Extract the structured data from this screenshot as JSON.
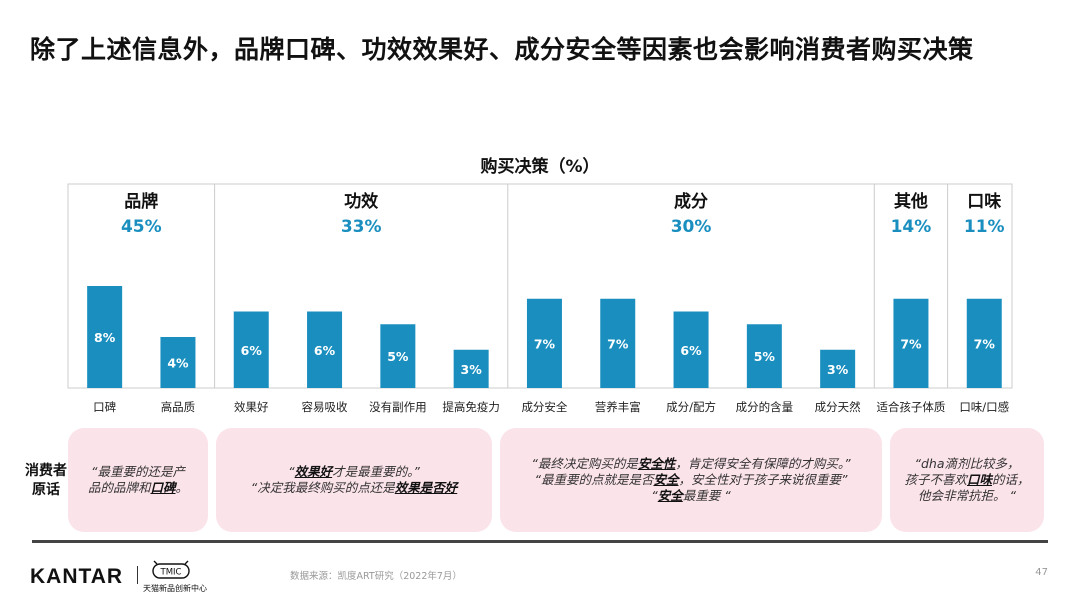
{
  "title": "除了上述信息外，品牌口碑、功效效果好、成分安全等因素也会影响消费者购买决策",
  "chart_data": {
    "type": "bar",
    "title": "购买决策（%）",
    "groups": [
      {
        "name": "品牌",
        "pct": "45%",
        "items": [
          {
            "label": "口碑",
            "value": 8,
            "value_label": "8%"
          },
          {
            "label": "高品质",
            "value": 4,
            "value_label": "4%"
          }
        ]
      },
      {
        "name": "功效",
        "pct": "33%",
        "items": [
          {
            "label": "效果好",
            "value": 6,
            "value_label": "6%"
          },
          {
            "label": "容易吸收",
            "value": 6,
            "value_label": "6%"
          },
          {
            "label": "没有副作用",
            "value": 5,
            "value_label": "5%"
          },
          {
            "label": "提高免疫力",
            "value": 3,
            "value_label": "3%"
          }
        ]
      },
      {
        "name": "成分",
        "pct": "30%",
        "items": [
          {
            "label": "成分安全",
            "value": 7,
            "value_label": "7%"
          },
          {
            "label": "营养丰富",
            "value": 7,
            "value_label": "7%"
          },
          {
            "label": "成分/配方",
            "value": 6,
            "value_label": "6%"
          },
          {
            "label": "成分的含量",
            "value": 5,
            "value_label": "5%"
          },
          {
            "label": "成分天然",
            "value": 3,
            "value_label": "3%"
          }
        ]
      },
      {
        "name": "其他",
        "pct": "14%",
        "items": [
          {
            "label": "适合孩子体质",
            "value": 7,
            "value_label": "7%"
          }
        ]
      },
      {
        "name": "口味",
        "pct": "11%",
        "items": [
          {
            "label": "口味/口感",
            "value": 7,
            "value_label": "7%"
          }
        ]
      }
    ],
    "ylim": [
      0,
      8
    ],
    "grid": false,
    "colors": {
      "bar": "#1a8fbf",
      "group_pct": "#1a8fbf",
      "bar_label": "#ffffff",
      "border": "#cccccc"
    }
  },
  "quotes_label": [
    "消费者",
    "原话"
  ],
  "quotes": [
    {
      "lines": [
        [
          {
            "t": "“最重要的还是产"
          }
        ],
        [
          {
            "t": "品的品牌和"
          },
          {
            "t": "口碑",
            "b": true
          },
          {
            "t": "。"
          }
        ]
      ]
    },
    {
      "lines": [
        [
          {
            "t": "“"
          },
          {
            "t": "效果好",
            "b": true
          },
          {
            "t": "才是最重要的。”"
          }
        ],
        [
          {
            "t": "“决定我最终购买的点还是"
          },
          {
            "t": "效果是否好",
            "b": true
          }
        ]
      ]
    },
    {
      "lines": [
        [
          {
            "t": "“最终决定购买的是"
          },
          {
            "t": "安全性",
            "b": true
          },
          {
            "t": "，肯定得安全有保障的才购买。”"
          }
        ],
        [
          {
            "t": "“最重要的点就是是否"
          },
          {
            "t": "安全",
            "b": true
          },
          {
            "t": "，安全性对于孩子来说很重要”"
          }
        ],
        [
          {
            "t": "“"
          },
          {
            "t": "安全",
            "b": true
          },
          {
            "t": "最重要 “"
          }
        ]
      ]
    },
    {
      "lines": [
        [
          {
            "t": "“dha滴剂比较多，"
          }
        ],
        [
          {
            "t": "孩子不喜欢"
          },
          {
            "t": "口味",
            "b": true
          },
          {
            "t": "的话，"
          }
        ],
        [
          {
            "t": "他会非常抗拒。 “"
          }
        ]
      ]
    }
  ],
  "footer": {
    "brand": "KANTAR",
    "tmic_logo": "TMIC",
    "tmic_text": "天猫新品创新中心",
    "source": "数据来源：凯度ART研究（2022年7月）",
    "page": "47"
  }
}
